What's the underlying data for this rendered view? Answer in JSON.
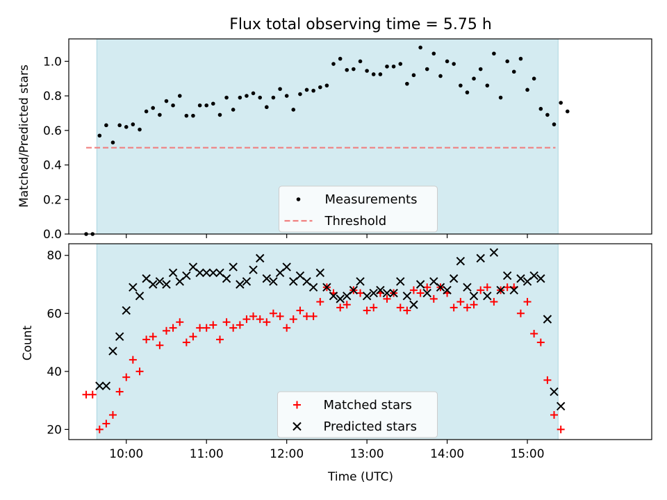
{
  "colors": {
    "shade": "#d4ebf1",
    "measurement": "#000000",
    "threshold": "#f08080",
    "matched": "#ff0000",
    "predicted": "#000000"
  },
  "chart_data": [
    {
      "type": "scatter",
      "title": "Flux total observing time = 5.75 h",
      "ylabel": "Matched/Predicted stars",
      "xlabel": "",
      "x_unit": "hours UTC",
      "xlim": [
        9.2833,
        16.55
      ],
      "ylim": [
        0.0,
        1.13
      ],
      "yticks": [
        0.0,
        0.2,
        0.4,
        0.6,
        0.8,
        1.0
      ],
      "ytick_labels": [
        "0.0",
        "0.2",
        "0.4",
        "0.6",
        "0.8",
        "1.0"
      ],
      "xticks": [
        10,
        11,
        12,
        13,
        14,
        15
      ],
      "shaded_span": [
        9.633,
        15.383
      ],
      "threshold": {
        "y": 0.5,
        "x_range": [
          9.5,
          15.35
        ]
      },
      "legend": {
        "placement": "lower-center",
        "entries": [
          "Measurements",
          "Threshold"
        ]
      },
      "series": [
        {
          "name": "Measurements",
          "marker": "dot",
          "points": [
            [
              9.5,
              0.0
            ],
            [
              9.58,
              0.0
            ],
            [
              9.667,
              0.57
            ],
            [
              9.75,
              0.63
            ],
            [
              9.833,
              0.53
            ],
            [
              9.917,
              0.63
            ],
            [
              10.0,
              0.62
            ],
            [
              10.083,
              0.635
            ],
            [
              10.167,
              0.605
            ],
            [
              10.25,
              0.71
            ],
            [
              10.333,
              0.73
            ],
            [
              10.417,
              0.69
            ],
            [
              10.5,
              0.77
            ],
            [
              10.583,
              0.745
            ],
            [
              10.667,
              0.8
            ],
            [
              10.75,
              0.685
            ],
            [
              10.833,
              0.685
            ],
            [
              10.917,
              0.745
            ],
            [
              11.0,
              0.745
            ],
            [
              11.083,
              0.755
            ],
            [
              11.167,
              0.69
            ],
            [
              11.25,
              0.79
            ],
            [
              11.333,
              0.72
            ],
            [
              11.417,
              0.79
            ],
            [
              11.5,
              0.8
            ],
            [
              11.583,
              0.815
            ],
            [
              11.667,
              0.79
            ],
            [
              11.75,
              0.735
            ],
            [
              11.833,
              0.79
            ],
            [
              11.917,
              0.84
            ],
            [
              12.0,
              0.8
            ],
            [
              12.083,
              0.72
            ],
            [
              12.167,
              0.81
            ],
            [
              12.25,
              0.835
            ],
            [
              12.333,
              0.83
            ],
            [
              12.417,
              0.85
            ],
            [
              12.5,
              0.86
            ],
            [
              12.583,
              0.985
            ],
            [
              12.667,
              1.015
            ],
            [
              12.75,
              0.95
            ],
            [
              12.833,
              0.955
            ],
            [
              12.917,
              1.0
            ],
            [
              13.0,
              0.945
            ],
            [
              13.083,
              0.925
            ],
            [
              13.167,
              0.925
            ],
            [
              13.25,
              0.97
            ],
            [
              13.333,
              0.97
            ],
            [
              13.417,
              0.985
            ],
            [
              13.5,
              0.87
            ],
            [
              13.583,
              0.92
            ],
            [
              13.667,
              1.08
            ],
            [
              13.75,
              0.955
            ],
            [
              13.833,
              1.045
            ],
            [
              13.917,
              0.915
            ],
            [
              14.0,
              1.0
            ],
            [
              14.083,
              0.985
            ],
            [
              14.167,
              0.86
            ],
            [
              14.25,
              0.82
            ],
            [
              14.333,
              0.9
            ],
            [
              14.417,
              0.955
            ],
            [
              14.5,
              0.86
            ],
            [
              14.583,
              1.045
            ],
            [
              14.667,
              0.79
            ],
            [
              14.75,
              1.0
            ],
            [
              14.833,
              0.94
            ],
            [
              14.917,
              1.015
            ],
            [
              15.0,
              0.835
            ],
            [
              15.083,
              0.9
            ],
            [
              15.167,
              0.725
            ],
            [
              15.25,
              0.69
            ],
            [
              15.333,
              0.635
            ],
            [
              15.417,
              0.76
            ],
            [
              15.5,
              0.71
            ]
          ]
        }
      ]
    },
    {
      "type": "scatter",
      "title": "",
      "xlabel": "Time (UTC)",
      "ylabel": "Count",
      "x_unit": "hours UTC",
      "xlim": [
        9.2833,
        16.55
      ],
      "ylim": [
        16.5,
        84.0
      ],
      "yticks": [
        20,
        40,
        60,
        80
      ],
      "ytick_labels": [
        "20",
        "40",
        "60",
        "80"
      ],
      "xticks": [
        10,
        11,
        12,
        13,
        14,
        15
      ],
      "xtick_labels": [
        "10:00",
        "11:00",
        "12:00",
        "13:00",
        "14:00",
        "15:00"
      ],
      "shaded_span": [
        9.633,
        15.383
      ],
      "legend": {
        "placement": "lower-center",
        "entries": [
          "Matched stars",
          "Predicted stars"
        ]
      },
      "series": [
        {
          "name": "Matched stars",
          "marker": "plus",
          "points": [
            [
              9.5,
              32
            ],
            [
              9.58,
              32
            ],
            [
              9.667,
              20
            ],
            [
              9.75,
              22
            ],
            [
              9.833,
              25
            ],
            [
              9.917,
              33
            ],
            [
              10.0,
              38
            ],
            [
              10.083,
              44
            ],
            [
              10.167,
              40
            ],
            [
              10.25,
              51
            ],
            [
              10.333,
              52
            ],
            [
              10.417,
              49
            ],
            [
              10.5,
              54
            ],
            [
              10.583,
              55
            ],
            [
              10.667,
              57
            ],
            [
              10.75,
              50
            ],
            [
              10.833,
              52
            ],
            [
              10.917,
              55
            ],
            [
              11.0,
              55
            ],
            [
              11.083,
              56
            ],
            [
              11.167,
              51
            ],
            [
              11.25,
              57
            ],
            [
              11.333,
              55
            ],
            [
              11.417,
              56
            ],
            [
              11.5,
              58
            ],
            [
              11.583,
              59
            ],
            [
              11.667,
              58
            ],
            [
              11.75,
              57
            ],
            [
              11.833,
              60
            ],
            [
              11.917,
              59
            ],
            [
              12.0,
              55
            ],
            [
              12.083,
              58
            ],
            [
              12.167,
              61
            ],
            [
              12.25,
              59
            ],
            [
              12.333,
              59
            ],
            [
              12.417,
              64
            ],
            [
              12.5,
              69
            ],
            [
              12.583,
              67
            ],
            [
              12.667,
              62
            ],
            [
              12.75,
              63
            ],
            [
              12.833,
              68
            ],
            [
              12.917,
              67
            ],
            [
              13.0,
              61
            ],
            [
              13.083,
              62
            ],
            [
              13.167,
              67
            ],
            [
              13.25,
              65
            ],
            [
              13.333,
              67
            ],
            [
              13.417,
              62
            ],
            [
              13.5,
              61
            ],
            [
              13.583,
              68
            ],
            [
              13.667,
              67
            ],
            [
              13.75,
              69
            ],
            [
              13.833,
              65
            ],
            [
              13.917,
              69
            ],
            [
              14.0,
              67
            ],
            [
              14.083,
              62
            ],
            [
              14.167,
              64
            ],
            [
              14.25,
              62
            ],
            [
              14.333,
              63
            ],
            [
              14.417,
              68
            ],
            [
              14.5,
              69
            ],
            [
              14.583,
              64
            ],
            [
              14.667,
              68
            ],
            [
              14.75,
              69
            ],
            [
              14.833,
              69
            ],
            [
              14.917,
              60
            ],
            [
              15.0,
              64
            ],
            [
              15.083,
              53
            ],
            [
              15.167,
              50
            ],
            [
              15.25,
              37
            ],
            [
              15.333,
              25
            ],
            [
              15.417,
              20
            ]
          ]
        },
        {
          "name": "Predicted stars",
          "marker": "x",
          "points": [
            [
              9.667,
              35
            ],
            [
              9.75,
              35
            ],
            [
              9.833,
              47
            ],
            [
              9.917,
              52
            ],
            [
              10.0,
              61
            ],
            [
              10.083,
              69
            ],
            [
              10.167,
              66
            ],
            [
              10.25,
              72
            ],
            [
              10.333,
              70
            ],
            [
              10.417,
              71
            ],
            [
              10.5,
              70
            ],
            [
              10.583,
              74
            ],
            [
              10.667,
              71
            ],
            [
              10.75,
              73
            ],
            [
              10.833,
              76
            ],
            [
              10.917,
              74
            ],
            [
              11.0,
              74
            ],
            [
              11.083,
              74
            ],
            [
              11.167,
              74
            ],
            [
              11.25,
              72
            ],
            [
              11.333,
              76
            ],
            [
              11.417,
              70
            ],
            [
              11.5,
              71
            ],
            [
              11.583,
              75
            ],
            [
              11.667,
              79
            ],
            [
              11.75,
              72
            ],
            [
              11.833,
              71
            ],
            [
              11.917,
              74
            ],
            [
              12.0,
              76
            ],
            [
              12.083,
              71
            ],
            [
              12.167,
              73
            ],
            [
              12.25,
              71
            ],
            [
              12.333,
              69
            ],
            [
              12.417,
              74
            ],
            [
              12.5,
              69
            ],
            [
              12.583,
              66
            ],
            [
              12.667,
              65
            ],
            [
              12.75,
              66
            ],
            [
              12.833,
              68
            ],
            [
              12.917,
              71
            ],
            [
              13.0,
              66
            ],
            [
              13.083,
              67
            ],
            [
              13.167,
              68
            ],
            [
              13.25,
              67
            ],
            [
              13.333,
              67
            ],
            [
              13.417,
              71
            ],
            [
              13.5,
              66
            ],
            [
              13.583,
              63
            ],
            [
              13.667,
              70
            ],
            [
              13.75,
              67
            ],
            [
              13.833,
              71
            ],
            [
              13.917,
              69
            ],
            [
              14.0,
              68
            ],
            [
              14.083,
              72
            ],
            [
              14.167,
              78
            ],
            [
              14.25,
              69
            ],
            [
              14.333,
              66
            ],
            [
              14.417,
              79
            ],
            [
              14.5,
              66
            ],
            [
              14.583,
              81
            ],
            [
              14.667,
              68
            ],
            [
              14.75,
              73
            ],
            [
              14.833,
              68
            ],
            [
              14.917,
              72
            ],
            [
              15.0,
              71
            ],
            [
              15.083,
              73
            ],
            [
              15.167,
              72
            ],
            [
              15.25,
              58
            ],
            [
              15.333,
              33
            ],
            [
              15.417,
              28
            ]
          ]
        }
      ]
    }
  ]
}
